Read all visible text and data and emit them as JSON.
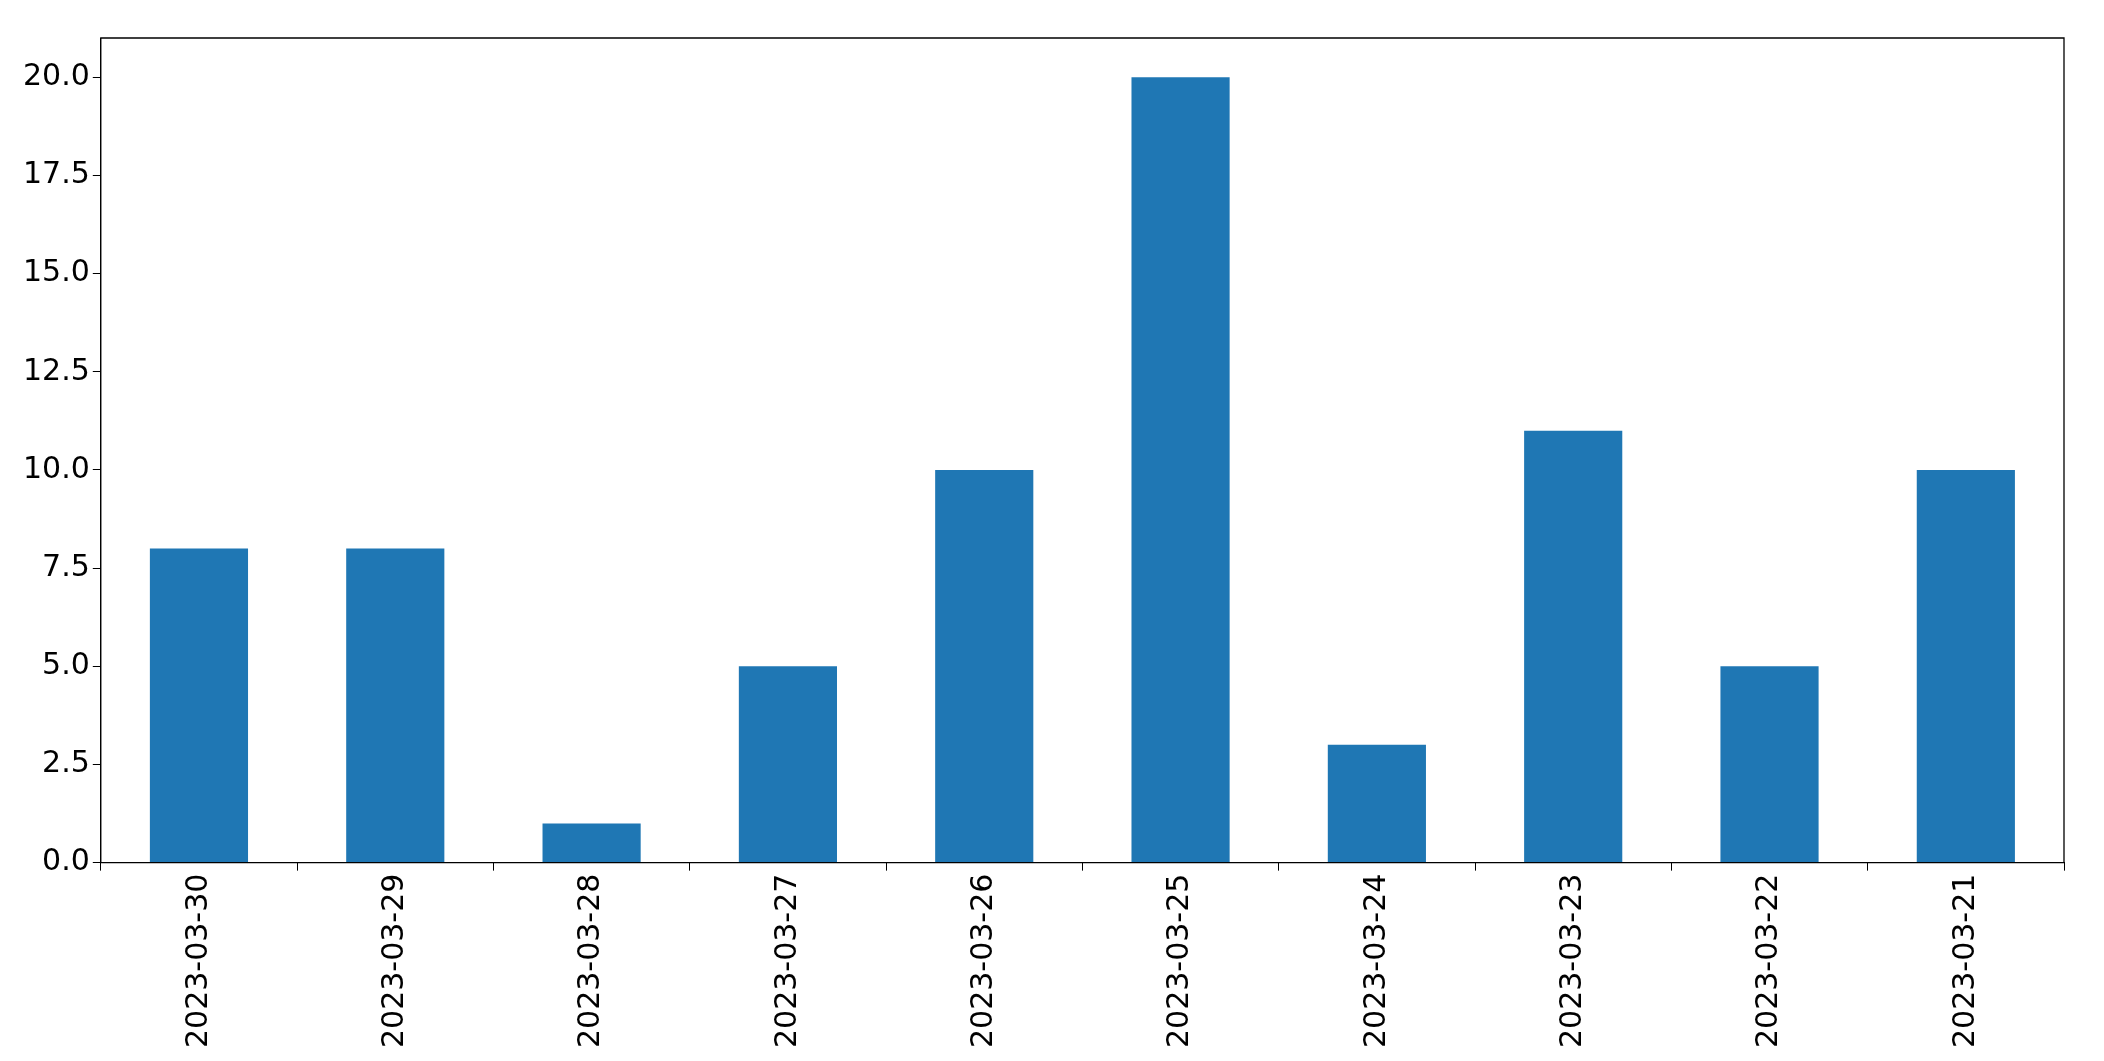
{
  "chart_data": {
    "type": "bar",
    "categories": [
      "2023-03-30",
      "2023-03-29",
      "2023-03-28",
      "2023-03-27",
      "2023-03-26",
      "2023-03-25",
      "2023-03-24",
      "2023-03-23",
      "2023-03-22",
      "2023-03-21"
    ],
    "values": [
      8,
      8,
      1,
      5,
      10,
      20,
      3,
      11,
      5,
      10
    ],
    "color": "#1f77b4",
    "ylim": [
      0,
      21
    ],
    "yticks": [
      {
        "value": 0,
        "label": "0.0"
      },
      {
        "value": 2.5,
        "label": "2.5"
      },
      {
        "value": 5,
        "label": "5.0"
      },
      {
        "value": 7.5,
        "label": "7.5"
      },
      {
        "value": 10,
        "label": "10.0"
      },
      {
        "value": 12.5,
        "label": "12.5"
      },
      {
        "value": 15,
        "label": "15.0"
      },
      {
        "value": 17.5,
        "label": "17.5"
      },
      {
        "value": 20,
        "label": "20.0"
      }
    ],
    "grid": false,
    "legend": false
  }
}
